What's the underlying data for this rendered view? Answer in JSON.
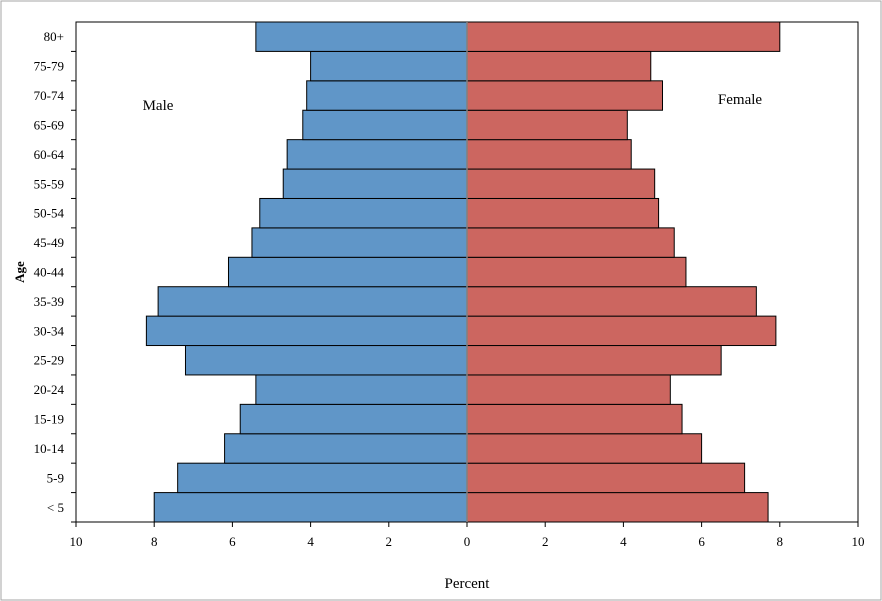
{
  "chart_data": {
    "type": "bar",
    "orientation": "horizontal",
    "variant": "population-pyramid",
    "categories": [
      "< 5",
      "5-9",
      "10-14",
      "15-19",
      "20-24",
      "25-29",
      "30-34",
      "35-39",
      "40-44",
      "45-49",
      "50-54",
      "55-59",
      "60-64",
      "65-69",
      "70-74",
      "75-79",
      "80+"
    ],
    "series": [
      {
        "name": "Male",
        "color": "#6096c8",
        "side": "left",
        "values": [
          8.0,
          7.4,
          6.2,
          5.8,
          5.4,
          7.2,
          8.2,
          7.9,
          6.1,
          5.5,
          5.3,
          4.7,
          4.6,
          4.2,
          4.1,
          4.0,
          5.4
        ]
      },
      {
        "name": "Female",
        "color": "#cc6660",
        "side": "right",
        "values": [
          7.7,
          7.1,
          6.0,
          5.5,
          5.2,
          6.5,
          7.9,
          7.4,
          5.6,
          5.3,
          4.9,
          4.8,
          4.2,
          4.1,
          5.0,
          4.7,
          8.0
        ]
      }
    ],
    "xlabel": "Percent",
    "ylabel": "Age",
    "xlim": [
      -10,
      10
    ],
    "x_ticks": [
      -10,
      -8,
      -6,
      -4,
      -2,
      0,
      2,
      4,
      6,
      8,
      10
    ],
    "x_tick_labels": [
      "10",
      "8",
      "6",
      "4",
      "2",
      "0",
      "2",
      "4",
      "6",
      "8",
      "10"
    ],
    "annotations": {
      "left": "Male",
      "right": "Female"
    },
    "grid": false,
    "legend": "none"
  }
}
